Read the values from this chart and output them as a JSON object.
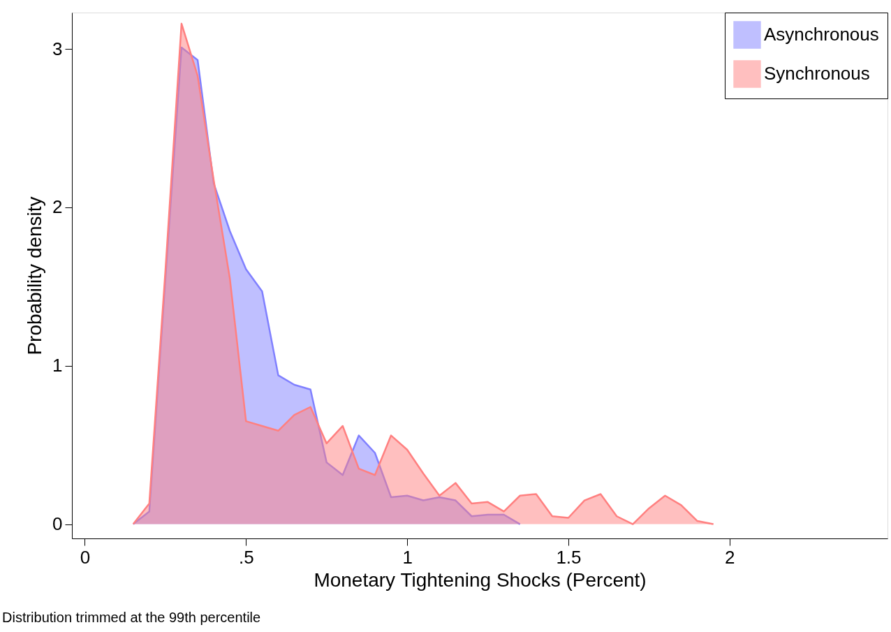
{
  "chart_data": {
    "type": "area",
    "xlabel": "Monetary Tightening Shocks (Percent)",
    "ylabel": "Probability density",
    "annotations": [
      "Distribution trimmed at the 99th percentile"
    ],
    "xlim": [
      -0.04,
      2.49
    ],
    "xticks": [
      0,
      {
        "value": 0.5,
        "label": ".5"
      },
      1,
      1.5,
      2
    ],
    "ylim": [
      -0.09,
      3.23
    ],
    "yticks": [
      0,
      1,
      2,
      3
    ],
    "grid": false,
    "legend": "top right",
    "series": [
      {
        "name": "Asynchronous",
        "color": "#8080ff",
        "x": [
          0.15,
          0.2,
          0.25,
          0.3,
          0.35,
          0.4,
          0.45,
          0.5,
          0.55,
          0.6,
          0.65,
          0.7,
          0.75,
          0.8,
          0.85,
          0.9,
          0.95,
          1.0,
          1.05,
          1.1,
          1.15,
          1.2,
          1.25,
          1.3,
          1.35
        ],
        "values": [
          0,
          0.08,
          1.55,
          3.01,
          2.93,
          2.15,
          1.85,
          1.61,
          1.47,
          0.94,
          0.88,
          0.85,
          0.39,
          0.31,
          0.56,
          0.45,
          0.17,
          0.18,
          0.15,
          0.17,
          0.15,
          0.05,
          0.06,
          0.06,
          0
        ]
      },
      {
        "name": "Synchronous",
        "color": "#ff8080",
        "x": [
          0.15,
          0.2,
          0.25,
          0.3,
          0.35,
          0.4,
          0.45,
          0.5,
          0.55,
          0.6,
          0.65,
          0.7,
          0.75,
          0.8,
          0.85,
          0.9,
          0.95,
          1.0,
          1.05,
          1.1,
          1.15,
          1.2,
          1.25,
          1.3,
          1.35,
          1.4,
          1.45,
          1.5,
          1.55,
          1.6,
          1.65,
          1.7,
          1.75,
          1.8,
          1.85,
          1.9,
          1.95
        ],
        "values": [
          0,
          0.13,
          1.6,
          3.16,
          2.83,
          2.17,
          1.55,
          0.65,
          0.62,
          0.59,
          0.69,
          0.74,
          0.51,
          0.62,
          0.35,
          0.31,
          0.56,
          0.47,
          0.32,
          0.18,
          0.26,
          0.13,
          0.14,
          0.08,
          0.18,
          0.19,
          0.05,
          0.04,
          0.15,
          0.19,
          0.05,
          0,
          0.1,
          0.18,
          0.12,
          0.02,
          0
        ]
      }
    ]
  }
}
